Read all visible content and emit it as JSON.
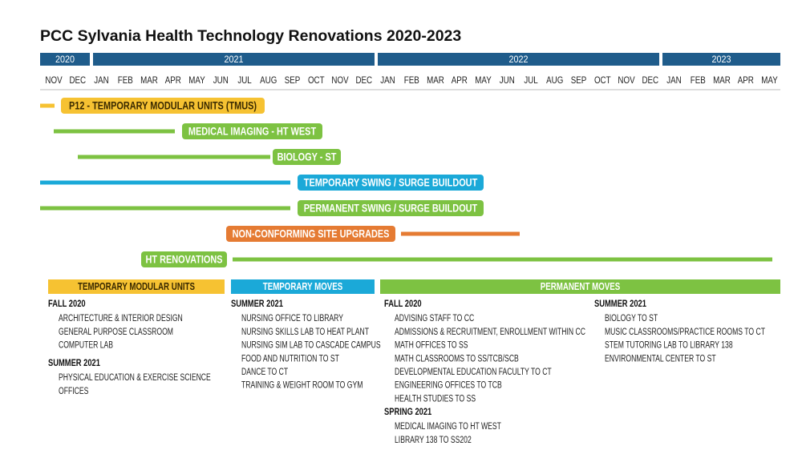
{
  "header": {
    "title": "PCC Sylvania Health Technology Renovations 2020-2023"
  },
  "years": [
    "2020",
    "2021",
    "2022",
    "2023"
  ],
  "months": [
    "NOV",
    "DEC",
    "JAN",
    "FEB",
    "MAR",
    "APR",
    "MAY",
    "JUN",
    "JUL",
    "AUG",
    "SEP",
    "OCT",
    "NOV",
    "DEC",
    "JAN",
    "FEB",
    "MAR",
    "APR",
    "MAY",
    "JUN",
    "JUL",
    "AUG",
    "SEP",
    "OCT",
    "NOV",
    "DEC",
    "JAN",
    "FEB",
    "MAR",
    "APR",
    "MAY"
  ],
  "tasks": [
    {
      "label": "P12 - TEMPORARY MODULAR UNITS (TMUS)"
    },
    {
      "label": "MEDICAL IMAGING - HT WEST"
    },
    {
      "label": "BIOLOGY - ST"
    },
    {
      "label": "TEMPORARY SWING / SURGE BUILDOUT"
    },
    {
      "label": "PERMANENT SWING / SURGE BUILDOUT"
    },
    {
      "label": "NON-CONFORMING SITE UPGRADES"
    },
    {
      "label": "HT RENOVATIONS"
    }
  ],
  "sections": [
    {
      "title": "TEMPORARY MODULAR UNITS",
      "groups": [
        {
          "term": "FALL 2020",
          "items": [
            "ARCHITECTURE & INTERIOR DESIGN",
            "GENERAL PURPOSE CLASSROOM",
            "COMPUTER LAB"
          ]
        },
        {
          "term": "SUMMER 2021",
          "items": [
            "PHYSICAL EDUCATION & EXERCISE SCIENCE",
            "OFFICES"
          ]
        }
      ]
    },
    {
      "title": "TEMPORARY MOVES",
      "groups": [
        {
          "term": "SUMMER 2021",
          "items": [
            "NURSING OFFICE TO LIBRARY",
            "NURSING SKILLS LAB TO HEAT PLANT",
            "NURSING SIM LAB TO CASCADE CAMPUS",
            "FOOD AND NUTRITION TO ST",
            "DANCE TO CT",
            "TRAINING & WEIGHT ROOM TO GYM"
          ]
        }
      ]
    },
    {
      "title": "PERMANENT MOVES",
      "groups": [
        {
          "term": "FALL 2020",
          "items": [
            "ADVISING STAFF TO CC",
            "ADMISSIONS & RECRUITMENT, ENROLLMENT WITHIN CC",
            "MATH OFFICES TO SS",
            "MATH CLASSROOMS TO SS/TCB/SCB",
            "DEVELOPMENTAL EDUCATION FACULTY TO CT",
            "ENGINEERING OFFICES TO TCB",
            "HEALTH STUDIES TO SS"
          ]
        },
        {
          "term": "SPRING 2021",
          "items": [
            "MEDICAL IMAGING TO HT WEST",
            "LIBRARY 138 TO SS202"
          ]
        },
        {
          "term": "SUMMER 2021",
          "items": [
            "BIOLOGY TO ST",
            "MUSIC CLASSROOMS/PRACTICE ROOMS TO CT",
            "STEM TUTORING LAB TO LIBRARY 138",
            "ENVIRONMENTAL CENTER TO ST"
          ]
        }
      ]
    }
  ]
}
